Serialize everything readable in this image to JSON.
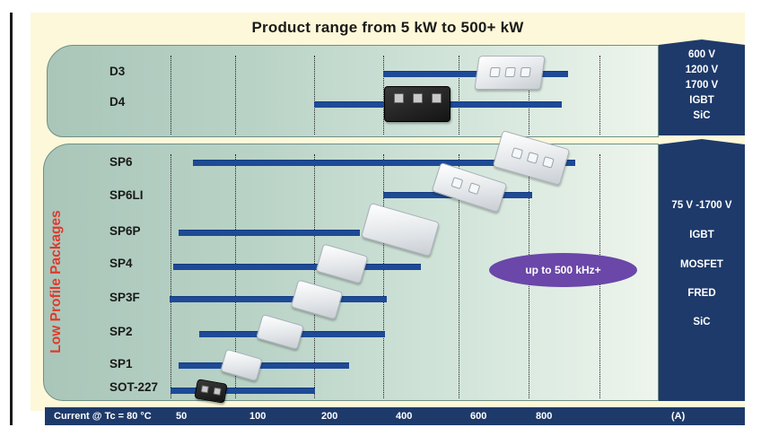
{
  "title": "Product range from 5 kW to 500+ kW",
  "side_label": "Low Profile Packages",
  "top_group": {
    "packages": [
      "D3",
      "D4"
    ],
    "specs": [
      "600 V",
      "1200 V",
      "1700 V",
      "IGBT",
      "SiC"
    ]
  },
  "bottom_group": {
    "packages": [
      "SP6",
      "SP6LI",
      "SP6P",
      "SP4",
      "SP3F",
      "SP2",
      "SP1",
      "SOT-227"
    ],
    "specs": [
      "75 V -1700 V",
      "IGBT",
      "MOSFET",
      "FRED",
      "SiC"
    ]
  },
  "highlight": "up to 500 kHz+",
  "axis": {
    "label": "Current @ Tc = 80 °C",
    "ticks": [
      "50",
      "100",
      "200",
      "400",
      "600",
      "800"
    ],
    "unit": "(A)"
  },
  "ranges": [
    {
      "package": "D3",
      "from": 400,
      "to": 900
    },
    {
      "package": "D4",
      "from": 200,
      "to": 900
    },
    {
      "package": "SP6",
      "from": 50,
      "to": 900
    },
    {
      "package": "SP6LI",
      "from": 400,
      "to": 800
    },
    {
      "package": "SP6P",
      "from": 50,
      "to": 300
    },
    {
      "package": "SP4",
      "from": 50,
      "to": 450
    },
    {
      "package": "SP3F",
      "from": 50,
      "to": 400
    },
    {
      "package": "SP2",
      "from": 50,
      "to": 400
    },
    {
      "package": "SP1",
      "from": 50,
      "to": 250
    },
    {
      "package": "SOT-227",
      "from": 50,
      "to": 200
    }
  ]
}
